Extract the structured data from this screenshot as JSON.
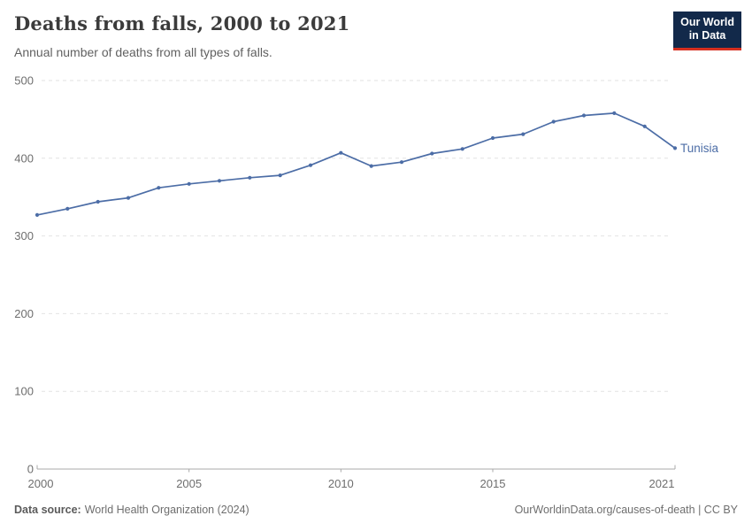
{
  "header": {
    "title": "Deaths from falls, 2000 to 2021",
    "subtitle": "Annual number of deaths from all types of falls.",
    "logo": {
      "line1": "Our World",
      "line2": "in Data"
    }
  },
  "chart_data": {
    "type": "line",
    "title": "Deaths from falls, 2000 to 2021",
    "x": [
      2000,
      2001,
      2002,
      2003,
      2004,
      2005,
      2006,
      2007,
      2008,
      2009,
      2010,
      2011,
      2012,
      2013,
      2014,
      2015,
      2016,
      2017,
      2018,
      2019,
      2020,
      2021
    ],
    "series": [
      {
        "name": "Tunisia",
        "values": [
          327,
          335,
          344,
          349,
          362,
          367,
          371,
          375,
          378,
          391,
          407,
          390,
          395,
          406,
          412,
          426,
          431,
          447,
          455,
          458,
          441,
          413
        ]
      }
    ],
    "xlabel": "",
    "ylabel": "",
    "ylim": [
      0,
      500
    ],
    "yticks": [
      0,
      100,
      200,
      300,
      400,
      500
    ],
    "xticks": [
      2000,
      2005,
      2010,
      2015,
      2021
    ],
    "grid": "horizontal-dashed",
    "legend_position": "end-of-line-label"
  },
  "footer": {
    "source_label": "Data source:",
    "source_value": "World Health Organization (2024)",
    "credit": "OurWorldinData.org/causes-of-death | CC BY"
  },
  "colors": {
    "line": "#4c6da6",
    "grid": "#e2e2e2",
    "axis": "#a9a9a9",
    "logo_navy": "#12294a",
    "logo_red": "#d62f1f"
  }
}
